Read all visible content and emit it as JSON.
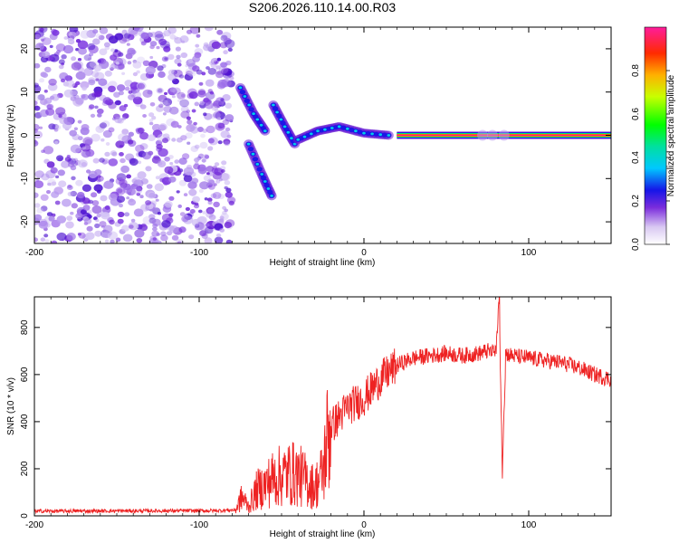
{
  "title": "S206.2026.110.14.00.R03",
  "chart_data": [
    {
      "type": "heatmap",
      "name": "spectrogram",
      "xlabel": "Height of straight line (km)",
      "ylabel": "Frequency (Hz)",
      "xlim": [
        -200,
        150
      ],
      "ylim": [
        -25,
        25
      ],
      "xticks": [
        -200,
        -100,
        0,
        100
      ],
      "yticks": [
        -20,
        -10,
        0,
        10,
        20
      ],
      "colorbar": {
        "label": "Normalized spectral amplitude",
        "range": [
          0,
          1
        ],
        "ticks": [
          "0.0",
          "0.2",
          "0.4",
          "0.6",
          "0.8"
        ],
        "tick_values": [
          0,
          0.2,
          0.4,
          0.6,
          0.8
        ]
      },
      "features": {
        "noise_region_km": [
          -200,
          -80
        ],
        "carrier_line_km": [
          20,
          150
        ],
        "carrier_frequency_hz": 0,
        "transition_branches": [
          {
            "name": "upper-branch",
            "points": [
              [
                -75,
                11
              ],
              [
                -67,
                5
              ],
              [
                -60,
                1
              ]
            ]
          },
          {
            "name": "middle-branch",
            "points": [
              [
                -55,
                7
              ],
              [
                -48,
                2
              ],
              [
                -42,
                -2
              ]
            ]
          },
          {
            "name": "lower-branch",
            "points": [
              [
                -70,
                -2
              ],
              [
                -62,
                -9
              ],
              [
                -56,
                -14
              ]
            ]
          },
          {
            "name": "converging-branch",
            "points": [
              [
                -40,
                -1
              ],
              [
                -28,
                1
              ],
              [
                -15,
                2
              ],
              [
                0,
                0.5
              ],
              [
                15,
                0
              ]
            ]
          }
        ]
      }
    },
    {
      "type": "line",
      "name": "snr",
      "xlabel": "Height of straight line (km)",
      "ylabel": "SNR (10 * v/v)",
      "xlim": [
        -200,
        150
      ],
      "ylim": [
        0,
        930
      ],
      "xticks": [
        -200,
        -100,
        0,
        100
      ],
      "yticks": [
        0,
        200,
        400,
        600,
        800
      ],
      "color": "#ee2222",
      "series": [
        {
          "name": "SNR",
          "x": [
            -200,
            -90,
            -78,
            -74,
            -70,
            -65,
            -60,
            -55,
            -50,
            -45,
            -40,
            -35,
            -30,
            -25,
            -22,
            -20,
            -15,
            -10,
            -5,
            0,
            5,
            10,
            15,
            20,
            30,
            40,
            50,
            60,
            70,
            75,
            80,
            82,
            84,
            86,
            90,
            100,
            110,
            120,
            130,
            140,
            150
          ],
          "values": [
            20,
            22,
            25,
            80,
            40,
            110,
            130,
            160,
            170,
            180,
            175,
            150,
            120,
            180,
            340,
            380,
            420,
            460,
            480,
            500,
            540,
            580,
            610,
            640,
            670,
            680,
            690,
            680,
            690,
            700,
            690,
            930,
            170,
            690,
            680,
            670,
            660,
            650,
            630,
            600,
            580
          ]
        }
      ]
    }
  ]
}
